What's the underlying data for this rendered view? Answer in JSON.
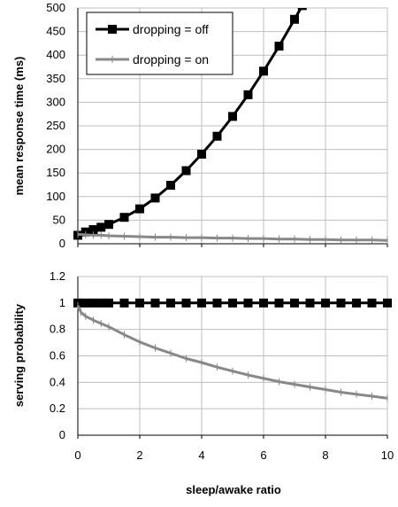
{
  "chart_data": [
    {
      "type": "line",
      "xlabel": "",
      "ylabel": "mean response time (ms)",
      "xlim": [
        0,
        10
      ],
      "ylim": [
        0,
        500
      ],
      "xticks": [
        "0",
        "2",
        "4",
        "6",
        "8",
        "10"
      ],
      "yticks": [
        "0",
        "50",
        "100",
        "150",
        "200",
        "250",
        "300",
        "350",
        "400",
        "450",
        "500"
      ],
      "grid": true,
      "legend": "top-left",
      "series": [
        {
          "name": "dropping = off",
          "color": "#000000",
          "marker": "square",
          "x": [
            0,
            0.25,
            0.5,
            0.75,
            1,
            1.5,
            2,
            2.5,
            3,
            3.5,
            4,
            4.5,
            5,
            5.5,
            6,
            6.5,
            7,
            7.25
          ],
          "y": [
            18,
            25,
            30,
            35,
            41,
            56,
            74,
            97,
            124,
            155,
            190,
            228,
            270,
            316,
            366,
            419,
            476,
            505
          ]
        },
        {
          "name": "dropping = on",
          "color": "#888888",
          "marker": "plus",
          "x": [
            0,
            0.25,
            0.5,
            0.75,
            1,
            1.5,
            2,
            2.5,
            3,
            3.5,
            4,
            4.5,
            5,
            5.5,
            6,
            6.5,
            7,
            7.5,
            8,
            8.5,
            9,
            9.5,
            10
          ],
          "y": [
            20,
            19,
            18,
            18,
            17,
            16,
            15,
            14,
            14,
            13,
            13,
            12,
            12,
            11,
            11,
            10,
            10,
            9,
            9,
            8,
            8,
            8,
            7
          ]
        }
      ]
    },
    {
      "type": "line",
      "xlabel": "sleep/awake ratio",
      "ylabel": "serving probability",
      "xlim": [
        0,
        10
      ],
      "ylim": [
        0,
        1.2
      ],
      "xticks": [
        "0",
        "2",
        "4",
        "6",
        "8",
        "10"
      ],
      "yticks": [
        "0",
        "0.2",
        "0.4",
        "0.6",
        "0.8",
        "1",
        "1.2"
      ],
      "grid": true,
      "series": [
        {
          "color": "#000000",
          "marker": "square",
          "x": [
            0,
            0.25,
            0.5,
            0.75,
            1,
            1.5,
            2,
            2.5,
            3,
            3.5,
            4,
            4.5,
            5,
            5.5,
            6,
            6.5,
            7,
            7.5,
            8,
            8.5,
            9,
            9.5,
            10
          ],
          "y": [
            1,
            1,
            1,
            1,
            1,
            1,
            1,
            1,
            1,
            1,
            1,
            1,
            1,
            1,
            1,
            1,
            1,
            1,
            1,
            1,
            1,
            1,
            1
          ]
        },
        {
          "color": "#888888",
          "marker": "plus",
          "x": [
            0,
            0.1,
            0.25,
            0.5,
            0.75,
            1,
            1.5,
            2,
            2.5,
            3,
            3.5,
            4,
            4.5,
            5,
            5.5,
            6,
            6.5,
            7,
            7.5,
            8,
            8.5,
            9,
            9.5,
            10
          ],
          "y": [
            0.98,
            0.93,
            0.9,
            0.87,
            0.845,
            0.82,
            0.76,
            0.705,
            0.66,
            0.62,
            0.58,
            0.55,
            0.515,
            0.485,
            0.455,
            0.43,
            0.405,
            0.385,
            0.365,
            0.345,
            0.325,
            0.31,
            0.295,
            0.28
          ]
        }
      ]
    }
  ]
}
